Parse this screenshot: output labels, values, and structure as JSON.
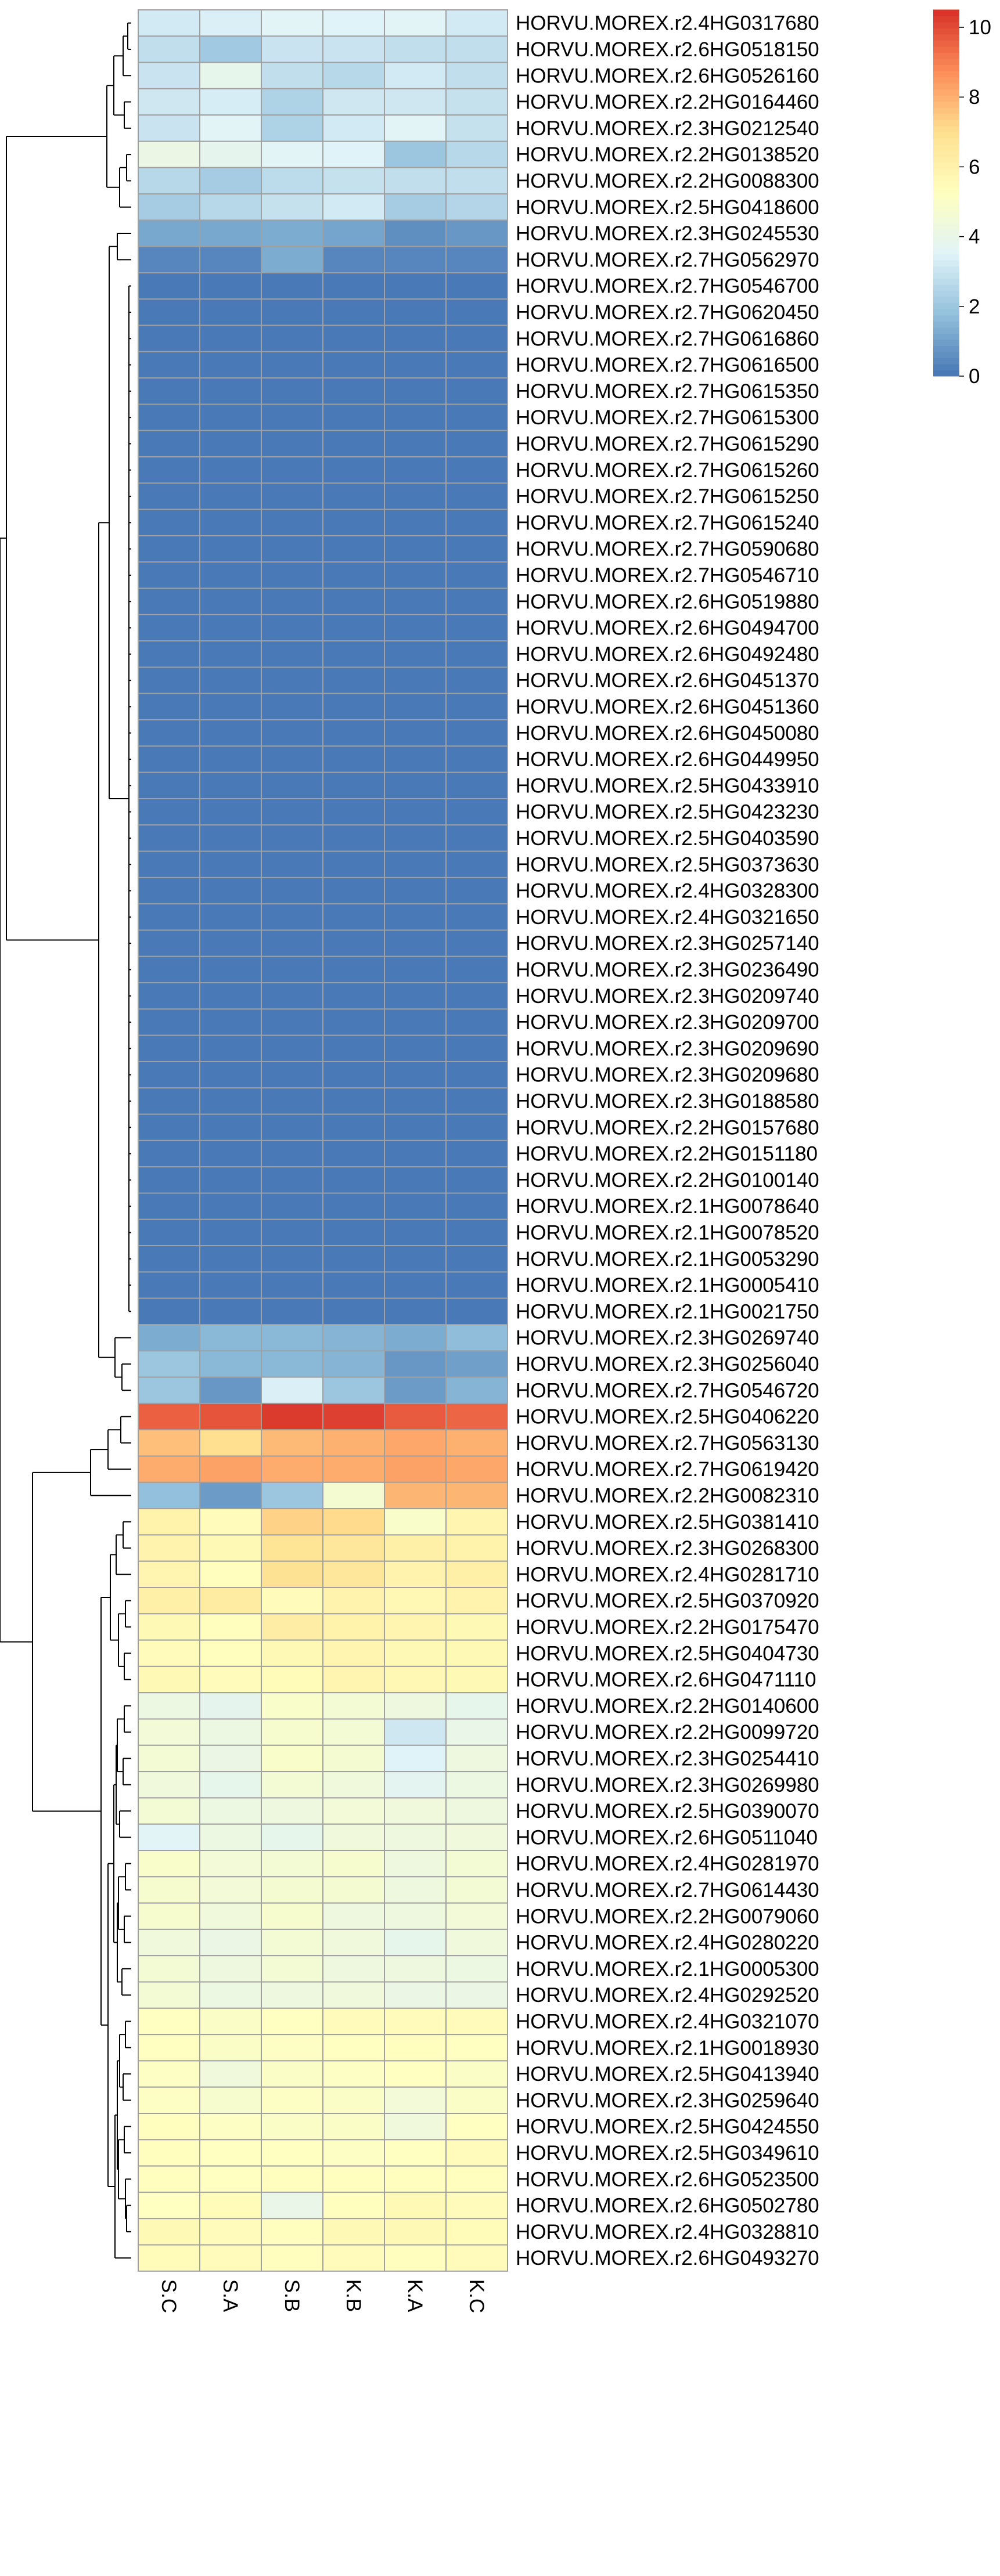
{
  "chart_data": {
    "type": "heatmap",
    "columns": [
      "S.C",
      "S.A",
      "S.B",
      "K.B",
      "K.A",
      "K.C"
    ],
    "rows": [
      {
        "label": "HORVU.MOREX.r2.4HG0317680",
        "values": [
          3.2,
          3.4,
          3.6,
          3.5,
          3.6,
          3.2
        ]
      },
      {
        "label": "HORVU.MOREX.r2.6HG0518150",
        "values": [
          2.8,
          2.1,
          3.0,
          3.0,
          2.8,
          2.8
        ]
      },
      {
        "label": "HORVU.MOREX.r2.6HG0526160",
        "values": [
          3.0,
          3.9,
          2.8,
          2.6,
          3.2,
          2.8
        ]
      },
      {
        "label": "HORVU.MOREX.r2.2HG0164460",
        "values": [
          3.1,
          3.3,
          2.4,
          3.1,
          3.1,
          2.9
        ]
      },
      {
        "label": "HORVU.MOREX.r2.3HG0212540",
        "values": [
          3.0,
          3.6,
          2.4,
          3.2,
          3.6,
          2.9
        ]
      },
      {
        "label": "HORVU.MOREX.r2.2HG0138520",
        "values": [
          4.1,
          3.8,
          3.6,
          3.5,
          2.0,
          2.6
        ]
      },
      {
        "label": "HORVU.MOREX.r2.2HG0088300",
        "values": [
          2.6,
          2.2,
          2.7,
          2.9,
          2.8,
          2.8
        ]
      },
      {
        "label": "HORVU.MOREX.r2.5HG0418600",
        "values": [
          2.2,
          2.6,
          2.9,
          3.2,
          2.2,
          2.5
        ]
      },
      {
        "label": "HORVU.MOREX.r2.3HG0245530",
        "values": [
          1.2,
          1.2,
          1.3,
          1.1,
          0.6,
          0.8
        ]
      },
      {
        "label": "HORVU.MOREX.r2.7HG0562970",
        "values": [
          0.4,
          0.4,
          1.3,
          0.4,
          0.4,
          0.4
        ]
      },
      {
        "label": "HORVU.MOREX.r2.7HG0546700",
        "values": [
          0.1,
          0.1,
          0.1,
          0.1,
          0.1,
          0.1
        ]
      },
      {
        "label": "HORVU.MOREX.r2.7HG0620450",
        "values": [
          0.1,
          0.1,
          0.1,
          0.1,
          0.1,
          0.1
        ]
      },
      {
        "label": "HORVU.MOREX.r2.7HG0616860",
        "values": [
          0.1,
          0.1,
          0.1,
          0.1,
          0.1,
          0.1
        ]
      },
      {
        "label": "HORVU.MOREX.r2.7HG0616500",
        "values": [
          0.1,
          0.1,
          0.1,
          0.1,
          0.1,
          0.1
        ]
      },
      {
        "label": "HORVU.MOREX.r2.7HG0615350",
        "values": [
          0.1,
          0.1,
          0.1,
          0.1,
          0.1,
          0.1
        ]
      },
      {
        "label": "HORVU.MOREX.r2.7HG0615300",
        "values": [
          0.1,
          0.1,
          0.1,
          0.1,
          0.1,
          0.1
        ]
      },
      {
        "label": "HORVU.MOREX.r2.7HG0615290",
        "values": [
          0.1,
          0.1,
          0.1,
          0.1,
          0.1,
          0.1
        ]
      },
      {
        "label": "HORVU.MOREX.r2.7HG0615260",
        "values": [
          0.1,
          0.1,
          0.1,
          0.1,
          0.1,
          0.1
        ]
      },
      {
        "label": "HORVU.MOREX.r2.7HG0615250",
        "values": [
          0.1,
          0.1,
          0.1,
          0.1,
          0.1,
          0.1
        ]
      },
      {
        "label": "HORVU.MOREX.r2.7HG0615240",
        "values": [
          0.1,
          0.1,
          0.1,
          0.1,
          0.1,
          0.1
        ]
      },
      {
        "label": "HORVU.MOREX.r2.7HG0590680",
        "values": [
          0.1,
          0.1,
          0.1,
          0.1,
          0.1,
          0.1
        ]
      },
      {
        "label": "HORVU.MOREX.r2.7HG0546710",
        "values": [
          0.1,
          0.1,
          0.1,
          0.1,
          0.1,
          0.1
        ]
      },
      {
        "label": "HORVU.MOREX.r2.6HG0519880",
        "values": [
          0.1,
          0.1,
          0.1,
          0.1,
          0.1,
          0.1
        ]
      },
      {
        "label": "HORVU.MOREX.r2.6HG0494700",
        "values": [
          0.1,
          0.1,
          0.1,
          0.1,
          0.1,
          0.1
        ]
      },
      {
        "label": "HORVU.MOREX.r2.6HG0492480",
        "values": [
          0.1,
          0.1,
          0.1,
          0.1,
          0.1,
          0.1
        ]
      },
      {
        "label": "HORVU.MOREX.r2.6HG0451370",
        "values": [
          0.1,
          0.1,
          0.1,
          0.1,
          0.1,
          0.1
        ]
      },
      {
        "label": "HORVU.MOREX.r2.6HG0451360",
        "values": [
          0.1,
          0.1,
          0.1,
          0.1,
          0.1,
          0.1
        ]
      },
      {
        "label": "HORVU.MOREX.r2.6HG0450080",
        "values": [
          0.1,
          0.1,
          0.1,
          0.1,
          0.1,
          0.1
        ]
      },
      {
        "label": "HORVU.MOREX.r2.6HG0449950",
        "values": [
          0.1,
          0.1,
          0.1,
          0.1,
          0.1,
          0.1
        ]
      },
      {
        "label": "HORVU.MOREX.r2.5HG0433910",
        "values": [
          0.1,
          0.1,
          0.1,
          0.1,
          0.1,
          0.1
        ]
      },
      {
        "label": "HORVU.MOREX.r2.5HG0423230",
        "values": [
          0.1,
          0.1,
          0.1,
          0.1,
          0.1,
          0.1
        ]
      },
      {
        "label": "HORVU.MOREX.r2.5HG0403590",
        "values": [
          0.1,
          0.1,
          0.1,
          0.1,
          0.1,
          0.1
        ]
      },
      {
        "label": "HORVU.MOREX.r2.5HG0373630",
        "values": [
          0.1,
          0.1,
          0.1,
          0.1,
          0.1,
          0.1
        ]
      },
      {
        "label": "HORVU.MOREX.r2.4HG0328300",
        "values": [
          0.1,
          0.1,
          0.1,
          0.1,
          0.1,
          0.1
        ]
      },
      {
        "label": "HORVU.MOREX.r2.4HG0321650",
        "values": [
          0.1,
          0.1,
          0.1,
          0.1,
          0.1,
          0.1
        ]
      },
      {
        "label": "HORVU.MOREX.r2.3HG0257140",
        "values": [
          0.1,
          0.1,
          0.1,
          0.1,
          0.1,
          0.1
        ]
      },
      {
        "label": "HORVU.MOREX.r2.3HG0236490",
        "values": [
          0.1,
          0.1,
          0.1,
          0.1,
          0.1,
          0.1
        ]
      },
      {
        "label": "HORVU.MOREX.r2.3HG0209740",
        "values": [
          0.1,
          0.1,
          0.1,
          0.1,
          0.1,
          0.1
        ]
      },
      {
        "label": "HORVU.MOREX.r2.3HG0209700",
        "values": [
          0.1,
          0.1,
          0.1,
          0.1,
          0.1,
          0.1
        ]
      },
      {
        "label": "HORVU.MOREX.r2.3HG0209690",
        "values": [
          0.1,
          0.1,
          0.1,
          0.1,
          0.1,
          0.1
        ]
      },
      {
        "label": "HORVU.MOREX.r2.3HG0209680",
        "values": [
          0.1,
          0.1,
          0.1,
          0.1,
          0.1,
          0.1
        ]
      },
      {
        "label": "HORVU.MOREX.r2.3HG0188580",
        "values": [
          0.1,
          0.1,
          0.1,
          0.1,
          0.1,
          0.1
        ]
      },
      {
        "label": "HORVU.MOREX.r2.2HG0157680",
        "values": [
          0.1,
          0.1,
          0.1,
          0.1,
          0.1,
          0.1
        ]
      },
      {
        "label": "HORVU.MOREX.r2.2HG0151180",
        "values": [
          0.1,
          0.1,
          0.1,
          0.1,
          0.1,
          0.1
        ]
      },
      {
        "label": "HORVU.MOREX.r2.2HG0100140",
        "values": [
          0.1,
          0.1,
          0.1,
          0.1,
          0.1,
          0.1
        ]
      },
      {
        "label": "HORVU.MOREX.r2.1HG0078640",
        "values": [
          0.1,
          0.1,
          0.1,
          0.1,
          0.1,
          0.1
        ]
      },
      {
        "label": "HORVU.MOREX.r2.1HG0078520",
        "values": [
          0.1,
          0.1,
          0.1,
          0.1,
          0.1,
          0.1
        ]
      },
      {
        "label": "HORVU.MOREX.r2.1HG0053290",
        "values": [
          0.1,
          0.1,
          0.1,
          0.1,
          0.1,
          0.1
        ]
      },
      {
        "label": "HORVU.MOREX.r2.1HG0005410",
        "values": [
          0.1,
          0.1,
          0.1,
          0.1,
          0.1,
          0.1
        ]
      },
      {
        "label": "HORVU.MOREX.r2.1HG0021750",
        "values": [
          0.1,
          0.1,
          0.1,
          0.1,
          0.1,
          0.1
        ]
      },
      {
        "label": "HORVU.MOREX.r2.3HG0269740",
        "values": [
          1.3,
          1.6,
          1.6,
          1.5,
          1.3,
          1.7
        ]
      },
      {
        "label": "HORVU.MOREX.r2.3HG0256040",
        "values": [
          2.0,
          1.6,
          1.6,
          1.5,
          0.8,
          1.0
        ]
      },
      {
        "label": "HORVU.MOREX.r2.7HG0546720",
        "values": [
          2.0,
          0.8,
          3.4,
          2.0,
          0.9,
          1.5
        ]
      },
      {
        "label": "HORVU.MOREX.r2.5HG0406220",
        "values": [
          9.6,
          9.8,
          10.3,
          10.2,
          9.7,
          9.5
        ]
      },
      {
        "label": "HORVU.MOREX.r2.7HG0563130",
        "values": [
          7.7,
          7.0,
          7.8,
          8.0,
          8.2,
          8.0
        ]
      },
      {
        "label": "HORVU.MOREX.r2.7HG0619420",
        "values": [
          8.1,
          8.3,
          8.1,
          8.1,
          8.3,
          8.2
        ]
      },
      {
        "label": "HORVU.MOREX.r2.2HG0082310",
        "values": [
          1.8,
          0.9,
          2.0,
          4.7,
          7.9,
          7.9
        ]
      },
      {
        "label": "HORVU.MOREX.r2.5HG0381410",
        "values": [
          6.0,
          5.4,
          7.3,
          7.1,
          4.9,
          5.8
        ]
      },
      {
        "label": "HORVU.MOREX.r2.3HG0268300",
        "values": [
          5.9,
          5.6,
          6.8,
          6.6,
          6.1,
          6.0
        ]
      },
      {
        "label": "HORVU.MOREX.r2.4HG0281710",
        "values": [
          5.8,
          5.3,
          6.9,
          6.6,
          5.9,
          6.1
        ]
      },
      {
        "label": "HORVU.MOREX.r2.5HG0370920",
        "values": [
          6.1,
          6.3,
          5.4,
          5.9,
          5.7,
          5.9
        ]
      },
      {
        "label": "HORVU.MOREX.r2.2HG0175470",
        "values": [
          5.6,
          5.3,
          6.2,
          6.0,
          5.8,
          5.6
        ]
      },
      {
        "label": "HORVU.MOREX.r2.5HG0404730",
        "values": [
          5.4,
          5.3,
          5.6,
          5.8,
          5.6,
          5.6
        ]
      },
      {
        "label": "HORVU.MOREX.r2.6HG0471110",
        "values": [
          5.6,
          5.4,
          5.5,
          5.8,
          5.7,
          5.6
        ]
      },
      {
        "label": "HORVU.MOREX.r2.2HG0140600",
        "values": [
          4.2,
          3.8,
          4.9,
          4.6,
          4.3,
          3.9
        ]
      },
      {
        "label": "HORVU.MOREX.r2.2HG0099720",
        "values": [
          4.5,
          4.2,
          4.8,
          4.6,
          3.1,
          4.0
        ]
      },
      {
        "label": "HORVU.MOREX.r2.3HG0254410",
        "values": [
          4.6,
          4.1,
          4.9,
          4.7,
          3.5,
          4.3
        ]
      },
      {
        "label": "HORVU.MOREX.r2.3HG0269980",
        "values": [
          4.4,
          3.9,
          4.6,
          4.4,
          3.7,
          4.2
        ]
      },
      {
        "label": "HORVU.MOREX.r2.5HG0390070",
        "values": [
          4.6,
          4.2,
          4.3,
          4.5,
          4.4,
          4.3
        ]
      },
      {
        "label": "HORVU.MOREX.r2.6HG0511040",
        "values": [
          3.6,
          4.2,
          3.9,
          4.4,
          4.3,
          4.4
        ]
      },
      {
        "label": "HORVU.MOREX.r2.4HG0281970",
        "values": [
          4.9,
          4.5,
          4.6,
          4.8,
          4.3,
          4.6
        ]
      },
      {
        "label": "HORVU.MOREX.r2.7HG0614430",
        "values": [
          4.8,
          4.5,
          4.7,
          4.7,
          4.3,
          4.6
        ]
      },
      {
        "label": "HORVU.MOREX.r2.2HG0079060",
        "values": [
          4.8,
          4.4,
          4.8,
          4.3,
          4.3,
          4.5
        ]
      },
      {
        "label": "HORVU.MOREX.r2.4HG0280220",
        "values": [
          4.4,
          4.1,
          4.6,
          4.4,
          3.9,
          4.4
        ]
      },
      {
        "label": "HORVU.MOREX.r2.1HG0005300",
        "values": [
          4.6,
          4.3,
          4.6,
          4.3,
          4.3,
          4.2
        ]
      },
      {
        "label": "HORVU.MOREX.r2.4HG0292520",
        "values": [
          4.6,
          4.2,
          4.3,
          4.4,
          4.1,
          4.1
        ]
      },
      {
        "label": "HORVU.MOREX.r2.4HG0321070",
        "values": [
          5.2,
          5.0,
          5.2,
          5.4,
          5.4,
          5.4
        ]
      },
      {
        "label": "HORVU.MOREX.r2.1HG0018930",
        "values": [
          5.2,
          5.0,
          5.1,
          5.2,
          5.3,
          5.2
        ]
      },
      {
        "label": "HORVU.MOREX.r2.5HG0413940",
        "values": [
          5.1,
          4.4,
          5.0,
          5.1,
          5.2,
          5.0
        ]
      },
      {
        "label": "HORVU.MOREX.r2.3HG0259640",
        "values": [
          5.1,
          4.8,
          5.1,
          5.0,
          4.5,
          5.0
        ]
      },
      {
        "label": "HORVU.MOREX.r2.5HG0424550",
        "values": [
          5.3,
          5.1,
          5.0,
          5.0,
          4.4,
          5.2
        ]
      },
      {
        "label": "HORVU.MOREX.r2.5HG0349610",
        "values": [
          5.3,
          5.2,
          5.2,
          5.1,
          5.2,
          5.4
        ]
      },
      {
        "label": "HORVU.MOREX.r2.6HG0523500",
        "values": [
          5.3,
          5.2,
          5.3,
          5.3,
          5.3,
          5.3
        ]
      },
      {
        "label": "HORVU.MOREX.r2.6HG0502780",
        "values": [
          5.2,
          5.5,
          4.0,
          5.3,
          5.6,
          5.4
        ]
      },
      {
        "label": "HORVU.MOREX.r2.4HG0328810",
        "values": [
          5.6,
          5.4,
          5.3,
          5.6,
          5.6,
          5.5
        ]
      },
      {
        "label": "HORVU.MOREX.r2.6HG0493270",
        "values": [
          5.5,
          5.4,
          5.3,
          5.4,
          5.3,
          5.4
        ]
      }
    ],
    "color_scale": {
      "min": 0,
      "max": 10.5,
      "stops": [
        {
          "value": 0,
          "color": "#4575B4"
        },
        {
          "value": 1.75,
          "color": "#91BFDB"
        },
        {
          "value": 3.5,
          "color": "#E0F3F8"
        },
        {
          "value": 5.25,
          "color": "#FFFFBF"
        },
        {
          "value": 7.0,
          "color": "#FEE090"
        },
        {
          "value": 8.75,
          "color": "#FC8D59"
        },
        {
          "value": 10.5,
          "color": "#D73027"
        }
      ]
    },
    "legend": {
      "ticks": [
        0,
        2,
        4,
        6,
        8,
        10
      ],
      "tick_labels": [
        "0",
        "2",
        "4",
        "6",
        "8",
        "10"
      ],
      "placement": "top-right"
    },
    "cell_border_color": "#A0A0A0",
    "row_dendrogram": true,
    "title": "",
    "xlabel": "",
    "ylabel": ""
  }
}
